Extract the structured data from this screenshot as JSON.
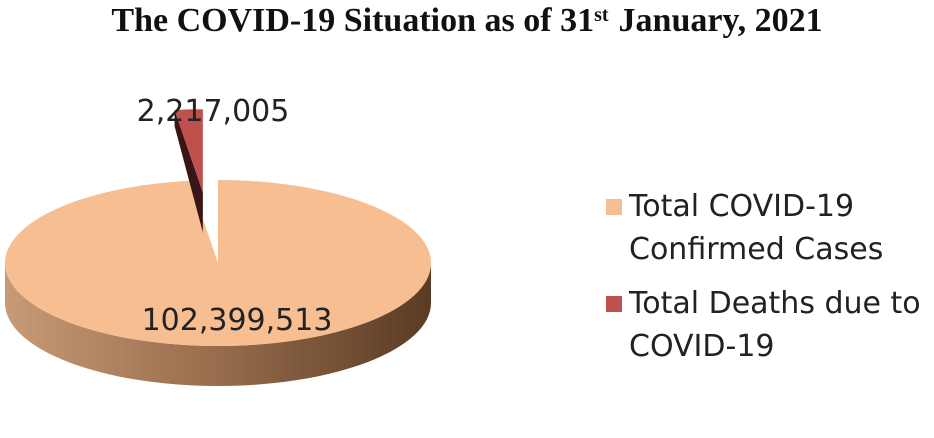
{
  "title": {
    "prefix": "The COVID-19 Situation as of 31",
    "superscript": "st",
    "suffix": "January, 2021"
  },
  "chart_data": {
    "type": "pie",
    "title": "The COVID-19 Situation as of 31st January, 2021",
    "slices": [
      {
        "label": "Total COVID-19 Confirmed Cases",
        "value": 102399513,
        "value_label": "102,399,513",
        "color": "#F7BE92"
      },
      {
        "label": "Total Deaths due to COVID-19",
        "value": 2217005,
        "value_label": "2,217,005",
        "color": "#C0504D",
        "exploded": true
      }
    ],
    "legend_position": "right",
    "style": "3d"
  },
  "legend": {
    "items": [
      {
        "label": "Total COVID-19 Confirmed Cases",
        "color": "#F7BE92"
      },
      {
        "label": "Total Deaths due to COVID-19",
        "color": "#C0504D"
      }
    ]
  }
}
